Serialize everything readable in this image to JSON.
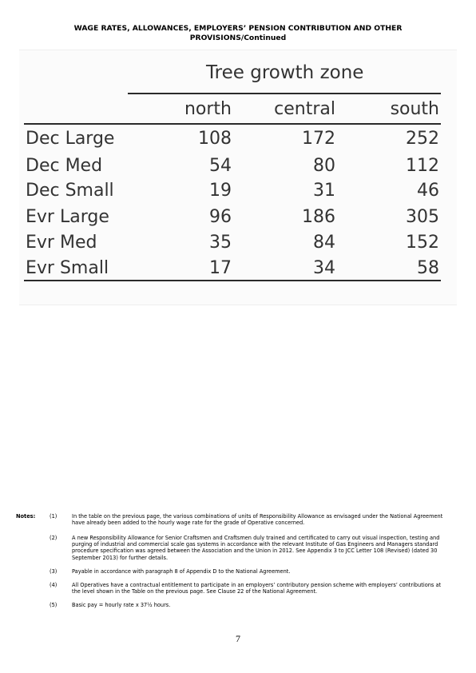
{
  "heading": {
    "line1": "WAGE RATES, ALLOWANCES, EMPLOYERS’ PENSION CONTRIBUTION AND OTHER",
    "line2": "PROVISIONS/Continued"
  },
  "table": {
    "title": "Tree growth zone",
    "columns": [
      "north",
      "central",
      "south"
    ],
    "rows": [
      {
        "label": "Dec Large",
        "values": [
          "108",
          "172",
          "252"
        ]
      },
      {
        "label": "Dec Med",
        "values": [
          "54",
          "80",
          "112"
        ]
      },
      {
        "label": "Dec Small",
        "values": [
          "19",
          "31",
          "46"
        ]
      },
      {
        "label": "Evr Large",
        "values": [
          "96",
          "186",
          "305"
        ]
      },
      {
        "label": "Evr Med",
        "values": [
          "35",
          "84",
          "152"
        ]
      },
      {
        "label": "Evr Small",
        "values": [
          "17",
          "34",
          "58"
        ]
      }
    ]
  },
  "notes": {
    "label": "Notes:",
    "items": [
      {
        "num": "(1)",
        "text": "In the table on the previous page, the various combinations of units of Responsibility Allowance as envisaged under the National Agreement have already been added to the hourly wage rate for the grade of Operative concerned."
      },
      {
        "num": "(2)",
        "text": "A new Responsibility Allowance for Senior Craftsmen and Craftsmen duly trained and certificated to carry out visual inspection, testing and purging of industrial and commercial scale gas systems in accordance with the relevant Institute of Gas Engineers and Managers standard procedure specification was agreed between the Association and the Union in 2012.  See Appendix 3 to JCC Letter 108 (Revised) (dated 30 September 2013) for further details."
      },
      {
        "num": "(3)",
        "text": "Payable in accordance with paragraph 8 of Appendix D to the National Agreement."
      },
      {
        "num": "(4)",
        "text": "All Operatives have a contractual entitlement to participate in an employers’ contributory pension scheme with employers’ contributions at the level shown in the Table on the previous page.  See Clause 22 of the National Agreement."
      },
      {
        "num": "(5)",
        "text": "Basic pay = hourly rate x 37½ hours."
      }
    ]
  },
  "page_number": "7"
}
